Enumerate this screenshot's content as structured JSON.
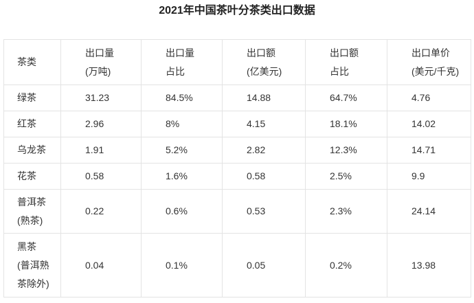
{
  "title": "2021年中国茶叶分茶类出口数据",
  "table": {
    "header": [
      [
        "茶类"
      ],
      [
        "出口量",
        "(万吨)"
      ],
      [
        "出口量",
        "占比"
      ],
      [
        "出口额",
        "(亿美元)"
      ],
      [
        "出口额",
        "占比"
      ],
      [
        "出口单价",
        "(美元/千克)"
      ]
    ],
    "rows": [
      [
        [
          "绿茶"
        ],
        "31.23",
        "84.5%",
        "14.88",
        "64.7%",
        "4.76"
      ],
      [
        [
          "红茶"
        ],
        "2.96",
        "8%",
        "4.15",
        "18.1%",
        "14.02"
      ],
      [
        [
          "乌龙茶"
        ],
        "1.91",
        "5.2%",
        "2.82",
        "12.3%",
        "14.71"
      ],
      [
        [
          "花茶"
        ],
        "0.58",
        "1.6%",
        "0.58",
        "2.5%",
        "9.9"
      ],
      [
        [
          "普洱茶",
          "(熟茶)"
        ],
        "0.22",
        "0.6%",
        "0.53",
        "2.3%",
        "24.14"
      ],
      [
        [
          "黑茶",
          "(普洱熟茶除外)"
        ],
        "0.04",
        "0.1%",
        "0.05",
        "0.2%",
        "13.98"
      ]
    ]
  }
}
